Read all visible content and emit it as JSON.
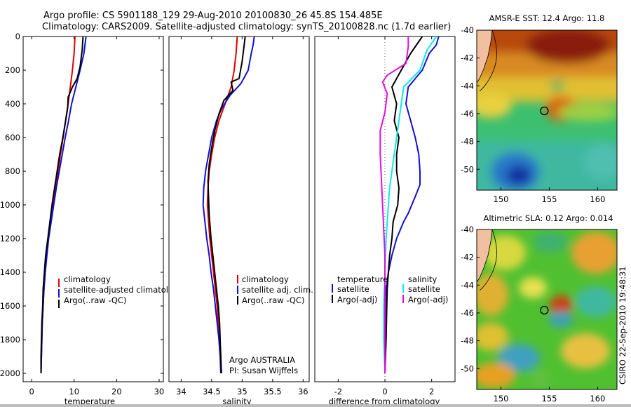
{
  "title_line1": "Argo profile: CS 5901188_129 29-Aug-2010 20100830_26 45.8S 154.485E",
  "title_line2": "Climatology: CARS2009. Satellite-adjusted climatology: synTS_20100828.nc (1.7d earlier)",
  "credit": "CSIRO 22-Sep-2010 19:48:31",
  "attribution_line1": "Argo AUSTRALIA",
  "attribution_line2": "PI: Susan Wijffels",
  "colors": {
    "red": "#e00000",
    "blue": "#1010d0",
    "black": "#000000",
    "cyan": "#10e8e8",
    "magenta": "#e010e0"
  },
  "chart_data": [
    {
      "type": "line",
      "xlabel": "temperature",
      "ylabel": "",
      "xlim": [
        -2,
        31
      ],
      "ylim": [
        2050,
        0
      ],
      "xticks": [
        "0",
        "10",
        "20",
        "30"
      ],
      "yticks": [
        "0",
        "200",
        "400",
        "600",
        "800",
        "1000",
        "1200",
        "1400",
        "1600",
        "1800",
        "2000"
      ],
      "legend": [
        "climatology",
        "satellite-adjusted climatology",
        "Argo(..raw -QC)"
      ],
      "series": [
        {
          "name": "climatology",
          "color": "red",
          "points": [
            [
              10.2,
              0
            ],
            [
              10.0,
              100
            ],
            [
              9.6,
              200
            ],
            [
              9.1,
              300
            ],
            [
              8.6,
              400
            ],
            [
              8.0,
              500
            ],
            [
              7.4,
              600
            ],
            [
              6.8,
              700
            ],
            [
              6.2,
              800
            ],
            [
              5.6,
              900
            ],
            [
              5.0,
              1000
            ],
            [
              4.4,
              1100
            ],
            [
              3.9,
              1200
            ],
            [
              3.5,
              1300
            ],
            [
              3.2,
              1400
            ],
            [
              2.9,
              1500
            ],
            [
              2.7,
              1600
            ],
            [
              2.5,
              1700
            ],
            [
              2.4,
              1800
            ],
            [
              2.3,
              1900
            ],
            [
              2.2,
              2000
            ]
          ]
        },
        {
          "name": "satellite-adjusted climatology",
          "color": "blue",
          "points": [
            [
              12.8,
              0
            ],
            [
              12.3,
              100
            ],
            [
              11.4,
              200
            ],
            [
              10.4,
              300
            ],
            [
              9.4,
              400
            ],
            [
              8.7,
              500
            ],
            [
              7.9,
              600
            ],
            [
              7.2,
              700
            ],
            [
              6.5,
              800
            ],
            [
              5.8,
              900
            ],
            [
              5.2,
              1000
            ],
            [
              4.6,
              1100
            ],
            [
              4.0,
              1200
            ],
            [
              3.6,
              1300
            ],
            [
              3.2,
              1400
            ],
            [
              2.9,
              1500
            ],
            [
              2.7,
              1600
            ],
            [
              2.5,
              1700
            ],
            [
              2.4,
              1800
            ],
            [
              2.3,
              1900
            ],
            [
              2.2,
              2000
            ]
          ]
        },
        {
          "name": "Argo(..raw -QC)",
          "color": "black",
          "points": [
            [
              12.1,
              0
            ],
            [
              11.9,
              80
            ],
            [
              11.4,
              180
            ],
            [
              10.7,
              250
            ],
            [
              9.6,
              300
            ],
            [
              8.6,
              360
            ],
            [
              8.5,
              420
            ],
            [
              8.0,
              500
            ],
            [
              7.6,
              560
            ],
            [
              7.2,
              620
            ],
            [
              6.6,
              700
            ],
            [
              6.0,
              800
            ],
            [
              5.4,
              900
            ],
            [
              4.8,
              1000
            ],
            [
              4.3,
              1100
            ],
            [
              3.8,
              1200
            ],
            [
              3.3,
              1300
            ],
            [
              3.0,
              1400
            ],
            [
              2.7,
              1500
            ],
            [
              2.6,
              1600
            ],
            [
              2.4,
              1700
            ],
            [
              2.3,
              1800
            ],
            [
              2.2,
              1900
            ],
            [
              2.2,
              2000
            ]
          ]
        }
      ]
    },
    {
      "type": "line",
      "xlabel": "salinity",
      "ylabel": "",
      "xlim": [
        33.8,
        36.1
      ],
      "ylim": [
        2050,
        0
      ],
      "xticks": [
        "34",
        "34.5",
        "35",
        "35.5",
        "36"
      ],
      "yticks": [],
      "legend": [
        "climatology",
        "satellite adj. clim.",
        "Argo(..raw -QC)"
      ],
      "series": [
        {
          "name": "climatology",
          "color": "red",
          "points": [
            [
              34.92,
              0
            ],
            [
              34.9,
              100
            ],
            [
              34.87,
              200
            ],
            [
              34.82,
              300
            ],
            [
              34.72,
              400
            ],
            [
              34.62,
              500
            ],
            [
              34.55,
              600
            ],
            [
              34.5,
              700
            ],
            [
              34.46,
              800
            ],
            [
              34.44,
              900
            ],
            [
              34.43,
              1000
            ],
            [
              34.45,
              1100
            ],
            [
              34.47,
              1200
            ],
            [
              34.5,
              1300
            ],
            [
              34.53,
              1400
            ],
            [
              34.56,
              1500
            ],
            [
              34.59,
              1600
            ],
            [
              34.61,
              1700
            ],
            [
              34.63,
              1800
            ],
            [
              34.65,
              1900
            ],
            [
              34.66,
              2000
            ]
          ]
        },
        {
          "name": "satellite adj. clim.",
          "color": "blue",
          "points": [
            [
              35.2,
              0
            ],
            [
              35.18,
              50
            ],
            [
              35.15,
              100
            ],
            [
              35.1,
              200
            ],
            [
              34.98,
              280
            ],
            [
              34.8,
              350
            ],
            [
              34.66,
              430
            ],
            [
              34.58,
              500
            ],
            [
              34.5,
              600
            ],
            [
              34.45,
              700
            ],
            [
              34.4,
              800
            ],
            [
              34.37,
              900
            ],
            [
              34.36,
              1000
            ],
            [
              34.39,
              1100
            ],
            [
              34.42,
              1200
            ],
            [
              34.46,
              1300
            ],
            [
              34.49,
              1400
            ],
            [
              34.53,
              1500
            ],
            [
              34.56,
              1600
            ],
            [
              34.59,
              1700
            ],
            [
              34.62,
              1800
            ],
            [
              34.64,
              1900
            ],
            [
              34.65,
              2000
            ]
          ]
        },
        {
          "name": "Argo(..raw -QC)",
          "color": "black",
          "points": [
            [
              35.05,
              0
            ],
            [
              35.03,
              60
            ],
            [
              35.0,
              150
            ],
            [
              34.95,
              250
            ],
            [
              34.82,
              270
            ],
            [
              34.85,
              320
            ],
            [
              34.7,
              380
            ],
            [
              34.62,
              460
            ],
            [
              34.55,
              560
            ],
            [
              34.5,
              660
            ],
            [
              34.46,
              760
            ],
            [
              34.44,
              860
            ],
            [
              34.45,
              960
            ],
            [
              34.46,
              1060
            ],
            [
              34.49,
              1200
            ],
            [
              34.52,
              1300
            ],
            [
              34.55,
              1400
            ],
            [
              34.58,
              1500
            ],
            [
              34.61,
              1600
            ],
            [
              34.63,
              1700
            ],
            [
              34.64,
              1800
            ],
            [
              34.65,
              1900
            ],
            [
              34.66,
              2000
            ]
          ]
        }
      ]
    },
    {
      "type": "line",
      "xlabel": "difference from climatology",
      "ylabel": "",
      "xlim": [
        -3,
        3
      ],
      "ylim": [
        2050,
        0
      ],
      "xticks": [
        "-2",
        "0",
        "2"
      ],
      "yticks": [],
      "legend_left_title": "temperature",
      "legend_right_title": "salinity",
      "legend_left": [
        "satellite",
        "Argo(-adj)"
      ],
      "legend_right": [
        "satellite",
        "Argo(-adj)"
      ],
      "series": [
        {
          "name": "satellite",
          "group": "temperature",
          "color": "blue",
          "points": [
            [
              2.3,
              0
            ],
            [
              2.2,
              50
            ],
            [
              1.9,
              100
            ],
            [
              1.6,
              200
            ],
            [
              1.0,
              300
            ],
            [
              0.9,
              400
            ],
            [
              1.1,
              500
            ],
            [
              1.3,
              600
            ],
            [
              1.45,
              700
            ],
            [
              1.5,
              800
            ],
            [
              1.5,
              880
            ],
            [
              1.3,
              950
            ],
            [
              1.0,
              1050
            ],
            [
              0.8,
              1100
            ],
            [
              0.5,
              1200
            ],
            [
              0.3,
              1300
            ],
            [
              0.15,
              1400
            ],
            [
              0.05,
              1500
            ],
            [
              0.02,
              1600
            ],
            [
              0.0,
              1800
            ],
            [
              0.0,
              2000
            ]
          ]
        },
        {
          "name": "Argo(-adj)",
          "group": "temperature",
          "color": "black",
          "points": [
            [
              1.6,
              0
            ],
            [
              1.1,
              100
            ],
            [
              0.7,
              200
            ],
            [
              0.3,
              300
            ],
            [
              0.5,
              400
            ],
            [
              0.4,
              500
            ],
            [
              0.6,
              600
            ],
            [
              0.5,
              700
            ],
            [
              0.5,
              800
            ],
            [
              0.6,
              900
            ],
            [
              0.55,
              1000
            ],
            [
              0.35,
              1100
            ],
            [
              0.3,
              1200
            ],
            [
              0.2,
              1300
            ],
            [
              0.15,
              1400
            ],
            [
              0.1,
              1500
            ],
            [
              0.08,
              1600
            ],
            [
              0.05,
              1800
            ],
            [
              0.0,
              2000
            ]
          ]
        },
        {
          "name": "satellite",
          "group": "salinity",
          "color": "cyan",
          "points": [
            [
              2.2,
              0
            ],
            [
              1.8,
              80
            ],
            [
              1.5,
              200
            ],
            [
              0.8,
              300
            ],
            [
              0.7,
              400
            ],
            [
              0.6,
              500
            ],
            [
              0.5,
              600
            ],
            [
              0.4,
              700
            ],
            [
              0.3,
              800
            ],
            [
              0.2,
              900
            ],
            [
              0.15,
              1000
            ],
            [
              0.1,
              1100
            ],
            [
              0.05,
              1200
            ],
            [
              0.0,
              1400
            ],
            [
              -0.05,
              1600
            ],
            [
              -0.05,
              1800
            ],
            [
              0.0,
              2000
            ]
          ]
        },
        {
          "name": "Argo(-adj)",
          "group": "salinity",
          "color": "magenta",
          "points": [
            [
              1.0,
              0
            ],
            [
              1.0,
              60
            ],
            [
              0.9,
              160
            ],
            [
              0.1,
              230
            ],
            [
              -0.1,
              270
            ],
            [
              0.1,
              340
            ],
            [
              0.0,
              450
            ],
            [
              -0.2,
              560
            ],
            [
              -0.2,
              700
            ],
            [
              -0.15,
              850
            ],
            [
              -0.1,
              1000
            ],
            [
              -0.05,
              1150
            ],
            [
              0.0,
              1300
            ],
            [
              0.0,
              1500
            ],
            [
              0.0,
              1700
            ],
            [
              0.0,
              2000
            ]
          ]
        }
      ]
    },
    {
      "type": "heatmap",
      "title": "AMSR-E SST: 12.4 Argo: 11.8",
      "xlim": [
        147.5,
        162
      ],
      "ylim": [
        -51.5,
        -40
      ],
      "xticks": [
        "150",
        "155",
        "160"
      ],
      "yticks": [
        "-40",
        "-42",
        "-44",
        "-46",
        "-48",
        "-50"
      ],
      "argo_position": [
        154.485,
        -45.8
      ]
    },
    {
      "type": "heatmap",
      "title": "Altimetric SLA: 0.12 Argo: 0.014",
      "xlim": [
        147.5,
        162
      ],
      "ylim": [
        -51.5,
        -40
      ],
      "xticks": [
        "150",
        "155",
        "160"
      ],
      "yticks": [
        "-40",
        "-42",
        "-44",
        "-46",
        "-48",
        "-50"
      ],
      "argo_position": [
        154.485,
        -45.8
      ]
    }
  ]
}
